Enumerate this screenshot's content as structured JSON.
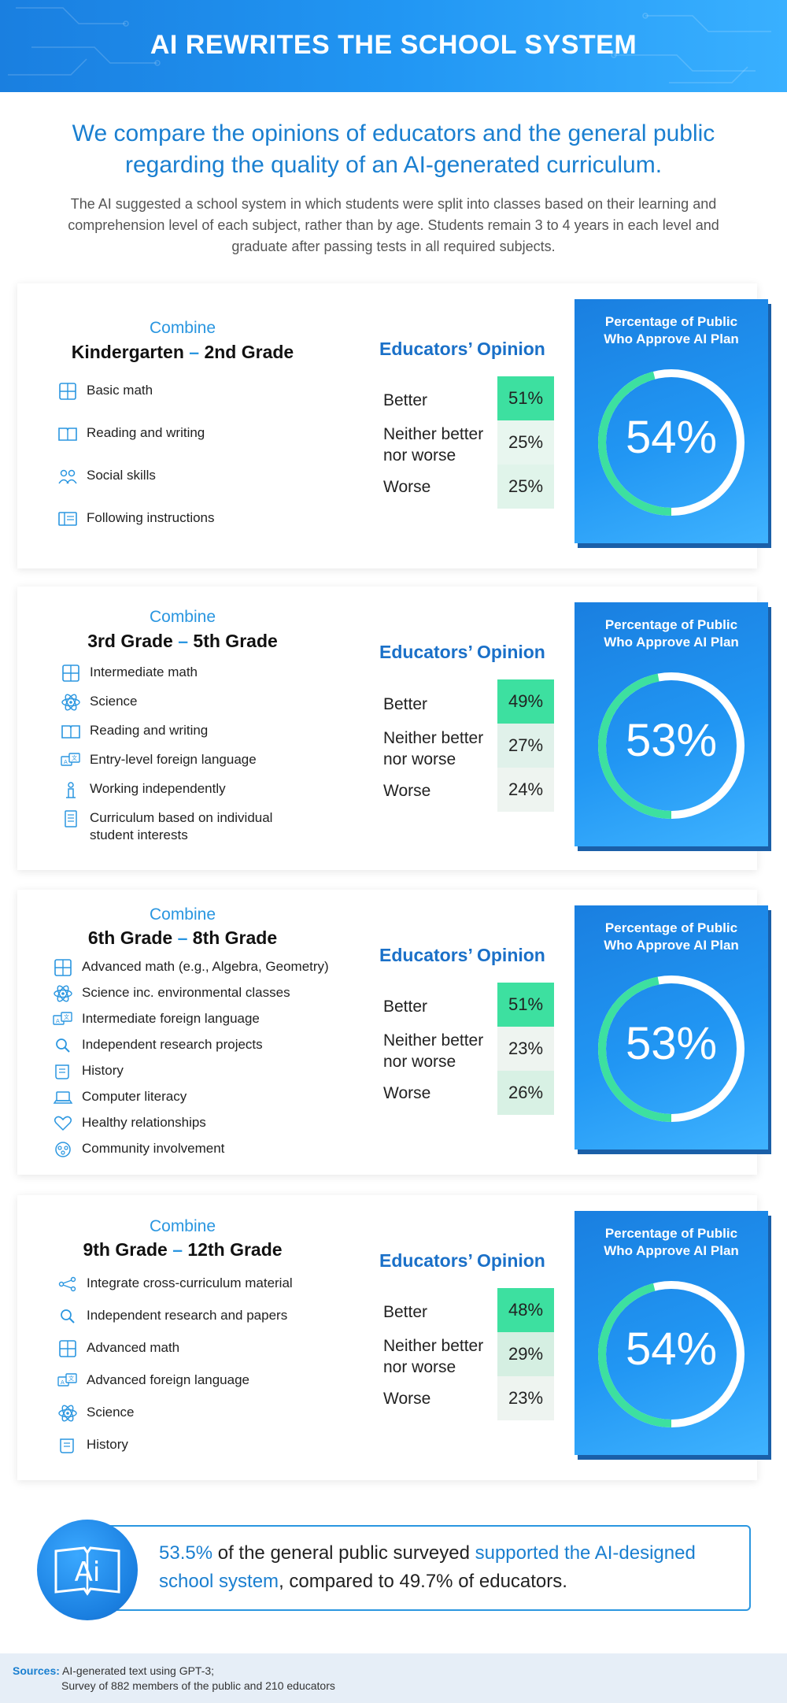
{
  "header": {
    "title": "AI REWRITES THE SCHOOL SYSTEM"
  },
  "intro": {
    "title": "We compare the opinions of educators and the general public regarding the quality of an AI-generated curriculum.",
    "body": "The AI suggested a school system in which students were split into classes based on their learning and comprehension level of each subject, rather than by age. Students remain 3 to 4 years in each level and graduate after passing tests in all required subjects."
  },
  "labels": {
    "combine": "Combine",
    "educators_opinion": "Educators’ Opinion",
    "better": "Better",
    "neither_line1": "Neither better",
    "neither_line2": "nor worse",
    "worse": "Worse",
    "public_title_line1": "Percentage of Public",
    "public_title_line2": "Who Approve AI Plan"
  },
  "sections": [
    {
      "grade_start": "Kindergarten",
      "dash": "–",
      "grade_end": "2nd Grade",
      "items": [
        {
          "icon": "calculator-icon",
          "text": "Basic math"
        },
        {
          "icon": "book-icon",
          "text": "Reading and writing"
        },
        {
          "icon": "people-icon",
          "text": "Social skills"
        },
        {
          "icon": "instructions-icon",
          "text": "Following instructions"
        }
      ],
      "better": "51%",
      "neither": "25%",
      "worse": "25%",
      "public_pct": "54%",
      "public_value": 54
    },
    {
      "grade_start": "3rd Grade",
      "dash": "–",
      "grade_end": "5th Grade",
      "items": [
        {
          "icon": "calculator-icon",
          "text": "Intermediate math"
        },
        {
          "icon": "atom-icon",
          "text": "Science"
        },
        {
          "icon": "book-icon",
          "text": "Reading and writing"
        },
        {
          "icon": "language-icon",
          "text": "Entry-level foreign language"
        },
        {
          "icon": "person-icon",
          "text": "Working independently"
        },
        {
          "icon": "document-icon",
          "text": "Curriculum based on individual",
          "text2": "student interests"
        }
      ],
      "better": "49%",
      "neither": "27%",
      "worse": "24%",
      "public_pct": "53%",
      "public_value": 53
    },
    {
      "grade_start": "6th Grade",
      "dash": "–",
      "grade_end": "8th Grade",
      "items": [
        {
          "icon": "calculator-icon",
          "text": "Advanced math (e.g., Algebra, Geometry)"
        },
        {
          "icon": "atom-icon",
          "text": "Science inc. environmental classes"
        },
        {
          "icon": "language-icon",
          "text": "Intermediate foreign language"
        },
        {
          "icon": "magnifier-icon",
          "text": "Independent research projects"
        },
        {
          "icon": "scroll-icon",
          "text": "History"
        },
        {
          "icon": "laptop-icon",
          "text": "Computer literacy"
        },
        {
          "icon": "heart-icon",
          "text": "Healthy relationships"
        },
        {
          "icon": "community-icon",
          "text": "Community involvement"
        }
      ],
      "better": "51%",
      "neither": "23%",
      "worse": "26%",
      "public_pct": "53%",
      "public_value": 53
    },
    {
      "grade_start": "9th Grade",
      "dash": "–",
      "grade_end": "12th Grade",
      "items": [
        {
          "icon": "network-icon",
          "text": "Integrate cross-curriculum material"
        },
        {
          "icon": "magnifier-icon",
          "text": "Independent research and papers"
        },
        {
          "icon": "calculator-icon",
          "text": "Advanced math"
        },
        {
          "icon": "language-icon",
          "text": "Advanced foreign language"
        },
        {
          "icon": "atom-icon",
          "text": "Science"
        },
        {
          "icon": "scroll-icon",
          "text": "History"
        }
      ],
      "better": "48%",
      "neither": "29%",
      "worse": "23%",
      "public_pct": "54%",
      "public_value": 54
    }
  ],
  "summary": {
    "part1": "53.5%",
    "part2": " of the general public surveyed ",
    "part3": "supported the AI-designed school system",
    "part4": ", compared to 49.7% of educators.",
    "icon_text": "Ai"
  },
  "footer": {
    "label": "Sources:",
    "line1": "AI-generated text using GPT-3;",
    "line2": "Survey of 882 members of the public and 210 educators"
  },
  "colors": {
    "accent_blue": "#2196f3",
    "better_bg": "#3de0a0",
    "neutral_bg": "#e4f4ec",
    "ring_green": "#3de0a0"
  }
}
